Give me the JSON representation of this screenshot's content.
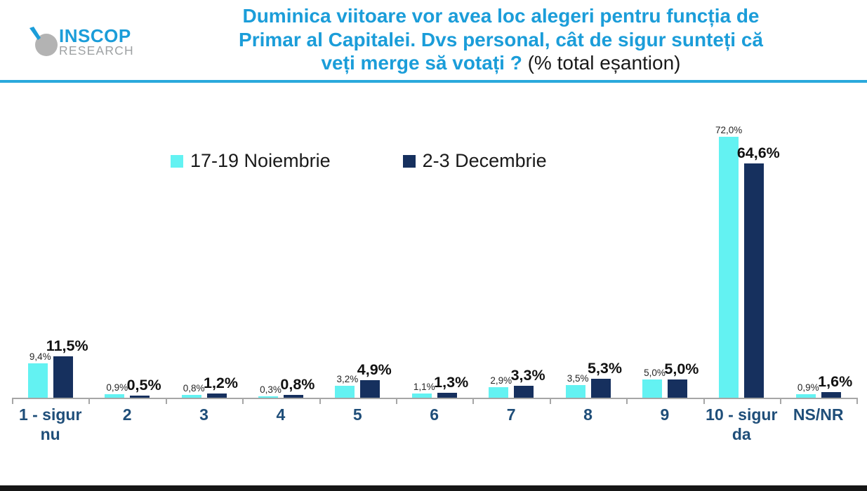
{
  "logo": {
    "name": "INSCOP",
    "subtitle": "RESEARCH"
  },
  "header": {
    "title_line1": "Duminica viitoare vor avea loc alegeri pentru funcția de",
    "title_line2": "Primar al Capitalei. Dvs personal, cât de sigur sunteți că",
    "title_line3_highlight": "veți merge să votați ?",
    "title_line3_suffix": " (% total eșantion)"
  },
  "colors": {
    "title_blue": "#1b9dd9",
    "divider_blue": "#2ba9dc",
    "axis_label_blue": "#1f4e79",
    "axis_gray": "#a6a6a6",
    "footer_black": "#161616"
  },
  "chart_data": {
    "type": "bar",
    "title": "Duminica viitoare vor avea loc alegeri pentru funcția de Primar al Capitalei. Dvs personal, cât de sigur sunteți că veți merge să votați ? (% total eșantion)",
    "categories": [
      "1 - sigur nu",
      "2",
      "3",
      "4",
      "5",
      "6",
      "7",
      "8",
      "9",
      "10 - sigur da",
      "NS/NR"
    ],
    "series": [
      {
        "name": "17-19 Noiembrie",
        "color": "#63f2f2",
        "values": [
          9.4,
          0.9,
          0.8,
          0.3,
          3.2,
          1.1,
          2.9,
          3.5,
          5.0,
          72.0,
          0.9
        ],
        "labels": [
          "9,4%",
          "0,9%",
          "0,8%",
          "0,3%",
          "3,2%",
          "1,1%",
          "2,9%",
          "3,5%",
          "5,0%",
          "72,0%",
          "0,9%"
        ]
      },
      {
        "name": "2-3 Decembrie",
        "color": "#16305e",
        "values": [
          11.5,
          0.5,
          1.2,
          0.8,
          4.9,
          1.3,
          3.3,
          5.3,
          5.0,
          64.6,
          1.6
        ],
        "labels": [
          "11,5%",
          "0,5%",
          "1,2%",
          "0,8%",
          "4,9%",
          "1,3%",
          "3,3%",
          "5,3%",
          "5,0%",
          "64,6%",
          "1,6%"
        ]
      }
    ],
    "xlabel": "",
    "ylabel": "",
    "ylim": [
      0,
      77
    ],
    "grid": false,
    "legend_position": "top"
  }
}
